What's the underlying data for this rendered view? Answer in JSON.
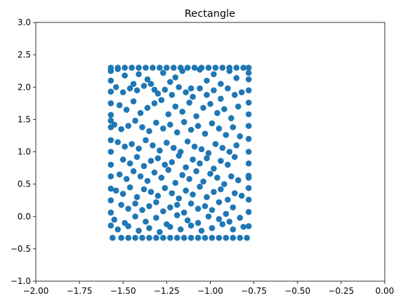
{
  "chart_data": {
    "type": "scatter",
    "title": "Rectangle",
    "xlabel": "",
    "ylabel": "",
    "xlim": [
      -2.0,
      0.0
    ],
    "ylim": [
      -1.0,
      3.0
    ],
    "xticks": [
      -2.0,
      -1.75,
      -1.5,
      -1.25,
      -1.0,
      -0.75,
      -0.5,
      -0.25,
      0.0
    ],
    "xtick_labels": [
      "−2.00",
      "−1.75",
      "−1.50",
      "−1.25",
      "−1.00",
      "−0.75",
      "−0.50",
      "−0.25",
      "0.00"
    ],
    "yticks": [
      -1.0,
      -0.5,
      0.0,
      0.5,
      1.0,
      1.5,
      2.0,
      2.5,
      3.0
    ],
    "ytick_labels": [
      "−1.0",
      "−0.5",
      "0.0",
      "0.5",
      "1.0",
      "1.5",
      "2.0",
      "2.5",
      "3.0"
    ],
    "grid": false,
    "legend": "none",
    "color": "#1f77b4",
    "series": [
      {
        "x": [
          -1.57,
          -1.53,
          -1.49,
          -1.45,
          -1.41,
          -1.37,
          -1.33,
          -1.29,
          -1.25,
          -1.21,
          -1.17,
          -1.13,
          -1.09,
          -1.05,
          -1.01,
          -0.97,
          -0.93,
          -0.89,
          -0.85,
          -0.81,
          -0.78,
          -1.56,
          -1.51,
          -1.47,
          -1.43,
          -1.39,
          -1.35,
          -1.31,
          -1.27,
          -1.23,
          -1.19,
          -1.15,
          -1.11,
          -1.07,
          -1.03,
          -0.99,
          -0.95,
          -0.91,
          -0.87,
          -0.83,
          -0.79,
          -1.57,
          -1.57,
          -1.57,
          -1.57,
          -1.57,
          -1.57,
          -1.57,
          -1.57,
          -1.57,
          -1.57,
          -1.57,
          -1.57,
          -1.57,
          -1.57,
          -1.57,
          -0.78,
          -0.78,
          -0.78,
          -0.78,
          -0.78,
          -0.78,
          -0.78,
          -0.78,
          -0.78,
          -0.78,
          -0.78,
          -0.78,
          -0.78,
          -0.78,
          -0.78,
          -1.53,
          -1.49,
          -1.44,
          -1.41,
          -1.36,
          -1.32,
          -1.27,
          -1.23,
          -1.2,
          -1.16,
          -1.11,
          -1.06,
          -1.02,
          -0.98,
          -0.94,
          -0.89,
          -0.85,
          -1.54,
          -1.5,
          -1.46,
          -1.42,
          -1.38,
          -1.34,
          -1.3,
          -1.26,
          -1.22,
          -1.18,
          -1.14,
          -1.1,
          -1.06,
          -1.02,
          -0.98,
          -0.94,
          -0.9,
          -0.86,
          -0.82,
          -1.52,
          -1.48,
          -1.44,
          -1.4,
          -1.36,
          -1.32,
          -1.28,
          -1.24,
          -1.2,
          -1.16,
          -1.12,
          -1.08,
          -1.04,
          -1.0,
          -0.96,
          -0.92,
          -0.88,
          -0.84,
          -1.55,
          -1.51,
          -1.47,
          -1.43,
          -1.39,
          -1.35,
          -1.31,
          -1.27,
          -1.23,
          -1.19,
          -1.15,
          -1.11,
          -1.07,
          -1.03,
          -0.99,
          -0.95,
          -0.91,
          -0.87,
          -0.83,
          -1.53,
          -1.49,
          -1.45,
          -1.41,
          -1.37,
          -1.33,
          -1.29,
          -1.25,
          -1.21,
          -1.17,
          -1.13,
          -1.09,
          -1.05,
          -1.01,
          -0.97,
          -0.93,
          -0.89,
          -0.85,
          -1.5,
          -1.46,
          -1.42,
          -1.38,
          -1.34,
          -1.3,
          -1.26,
          -1.22,
          -1.18,
          -1.14,
          -1.1,
          -1.06,
          -1.02,
          -0.98,
          -0.94,
          -0.9,
          -0.86,
          -1.52,
          -1.48,
          -1.44,
          -1.4,
          -1.36,
          -1.32,
          -1.28,
          -1.24,
          -1.2,
          -1.16,
          -1.12,
          -1.08,
          -1.04,
          -1.0,
          -0.96,
          -0.92,
          -0.88,
          -0.84,
          -1.54,
          -1.5,
          -1.46,
          -1.42,
          -1.38,
          -1.34,
          -1.3,
          -1.26,
          -1.22,
          -1.18,
          -1.14,
          -1.1,
          -1.06,
          -1.02,
          -0.98,
          -0.94,
          -0.9,
          -0.86,
          -0.82,
          -1.51,
          -1.47,
          -1.43,
          -1.39,
          -1.35,
          -1.31,
          -1.27,
          -1.23,
          -1.19,
          -1.15,
          -1.11,
          -1.07,
          -1.03,
          -0.99,
          -0.95,
          -0.91,
          -0.87,
          -1.55,
          -1.49,
          -1.43,
          -1.37,
          -1.31,
          -1.25,
          -1.19,
          -1.13,
          -1.07,
          -1.01,
          -0.95,
          -0.89,
          -0.83,
          -1.53,
          -1.47,
          -1.41,
          -1.35,
          -1.29,
          -1.23,
          -1.17,
          -1.11,
          -1.05,
          -0.99,
          -0.93,
          -0.87,
          -0.81
        ],
        "y": [
          2.3,
          2.3,
          2.3,
          2.3,
          2.3,
          2.3,
          2.3,
          2.3,
          2.3,
          2.3,
          2.3,
          2.3,
          2.3,
          2.3,
          2.3,
          2.3,
          2.3,
          2.3,
          2.3,
          2.3,
          2.3,
          -0.33,
          -0.33,
          -0.33,
          -0.33,
          -0.33,
          -0.33,
          -0.33,
          -0.33,
          -0.33,
          -0.33,
          -0.33,
          -0.33,
          -0.33,
          -0.33,
          -0.33,
          -0.33,
          -0.33,
          -0.33,
          -0.33,
          -0.33,
          2.1,
          1.93,
          1.75,
          1.57,
          1.38,
          1.18,
          1.0,
          0.8,
          0.62,
          0.43,
          0.25,
          0.06,
          -0.14,
          2.25,
          1.48,
          2.12,
          1.95,
          1.76,
          1.58,
          1.4,
          1.2,
          1.0,
          0.82,
          0.63,
          0.44,
          0.26,
          0.07,
          -0.15,
          2.22,
          0.6,
          2.28,
          2.18,
          2.05,
          2.2,
          2.12,
          1.96,
          2.22,
          2.08,
          2.15,
          2.25,
          1.98,
          2.27,
          2.1,
          2.2,
          2.05,
          2.25,
          2.14,
          2.0,
          1.92,
          1.98,
          1.95,
          2.02,
          2.05,
          1.9,
          1.96,
          1.88,
          2.0,
          1.92,
          1.85,
          1.98,
          1.88,
          1.95,
          1.82,
          1.98,
          1.88,
          1.92,
          1.72,
          1.65,
          1.78,
          1.6,
          1.68,
          1.75,
          1.8,
          1.58,
          1.7,
          1.62,
          1.76,
          1.55,
          1.68,
          1.74,
          1.6,
          1.66,
          1.52,
          1.7,
          1.42,
          1.35,
          1.4,
          1.48,
          1.38,
          1.32,
          1.45,
          1.36,
          1.42,
          1.3,
          1.46,
          1.34,
          1.4,
          1.28,
          1.44,
          1.36,
          1.26,
          1.38,
          1.24,
          1.15,
          1.08,
          1.12,
          1.05,
          1.18,
          1.1,
          1.02,
          1.14,
          1.06,
          1.0,
          1.16,
          1.08,
          1.04,
          0.98,
          1.12,
          1.06,
          1.0,
          1.1,
          0.88,
          0.82,
          0.92,
          0.78,
          0.86,
          0.9,
          0.8,
          0.84,
          0.94,
          0.76,
          0.88,
          0.82,
          0.9,
          0.74,
          0.86,
          0.8,
          0.92,
          0.65,
          0.58,
          0.7,
          0.62,
          0.55,
          0.68,
          0.6,
          0.72,
          0.52,
          0.64,
          0.58,
          0.7,
          0.54,
          0.66,
          0.6,
          0.5,
          0.62,
          0.56,
          0.4,
          0.35,
          0.45,
          0.3,
          0.42,
          0.38,
          0.32,
          0.44,
          0.36,
          0.28,
          0.4,
          0.34,
          0.46,
          0.3,
          0.38,
          0.42,
          0.26,
          0.36,
          0.32,
          0.18,
          0.12,
          0.2,
          0.1,
          0.16,
          0.22,
          0.08,
          0.14,
          0.18,
          0.06,
          0.2,
          0.12,
          0.16,
          0.1,
          0.22,
          0.04,
          0.14,
          -0.05,
          -0.1,
          0.0,
          -0.08,
          -0.02,
          -0.12,
          0.02,
          -0.06,
          -0.1,
          0.0,
          -0.04,
          -0.08,
          -0.02,
          -0.2,
          -0.15,
          -0.22,
          -0.18,
          -0.24,
          -0.16,
          -0.2,
          -0.14,
          -0.22,
          -0.18,
          -0.12,
          -0.2,
          -0.16
        ]
      }
    ]
  }
}
